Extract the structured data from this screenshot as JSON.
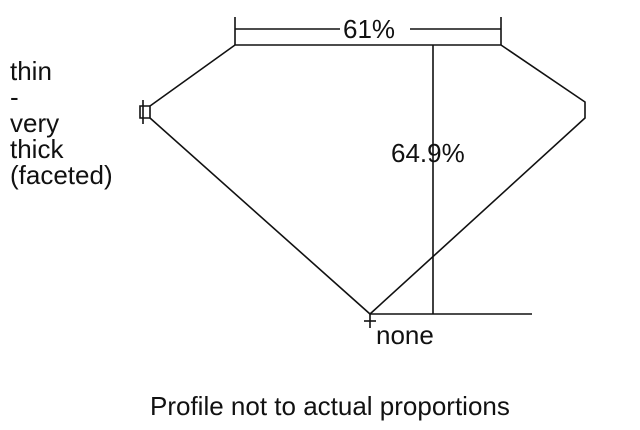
{
  "table_label": "61%",
  "depth_label": "64.9%",
  "culet_label": "none",
  "girdle_label": [
    "thin",
    "-",
    "very",
    "thick",
    "(faceted)"
  ],
  "caption": "Profile not to actual proportions",
  "colors": {
    "line": "#111111",
    "background": "#ffffff"
  }
}
